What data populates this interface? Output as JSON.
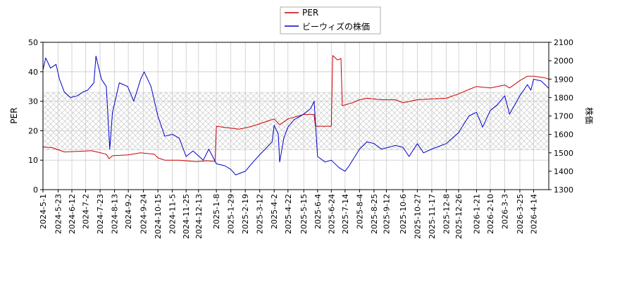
{
  "chart_data": {
    "type": "line",
    "title": "",
    "ylabel_left": "PER",
    "ylabel_right": "株価",
    "ylim_left": [
      0,
      50
    ],
    "ylim_right": [
      1300,
      2100
    ],
    "yticks_left": [
      0,
      10,
      20,
      30,
      40,
      50
    ],
    "yticks_right": [
      1300,
      1400,
      1500,
      1600,
      1700,
      1800,
      1900,
      2000,
      2100
    ],
    "x_start": "2024-05-01",
    "x_end": "2026-05-06",
    "xtick_labels": [
      "2024-5-1",
      "2024-5-23",
      "2024-6-12",
      "2024-7-2",
      "2024-7-23",
      "2024-8-13",
      "2024-9-2",
      "2024-9-24",
      "2024-10-15",
      "2024-11-5",
      "2024-11-25",
      "2024-12-13",
      "2025-1-8",
      "2025-1-29",
      "2025-2-19",
      "2025-3-12",
      "2025-4-2",
      "2025-4-22",
      "2025-5-15",
      "2025-6-4",
      "2025-6-24",
      "2025-7-14",
      "2025-8-4",
      "2025-8-25",
      "2025-9-12",
      "2025-10-6",
      "2025-10-27",
      "2025-11-17",
      "2025-12-8",
      "2025-12-26",
      "2026-1-21",
      "2026-2-10",
      "2026-3-3",
      "2026-3-25",
      "2026-4-14"
    ],
    "grid": true,
    "legend": "top-center",
    "band_left": [
      13.5,
      33
    ],
    "series": [
      {
        "name": "PER",
        "axis": "left",
        "color": "#cc0000",
        "points": [
          [
            "2024-05-01",
            14.5
          ],
          [
            "2024-05-15",
            14.2
          ],
          [
            "2024-06-01",
            12.8
          ],
          [
            "2024-06-20",
            13.0
          ],
          [
            "2024-07-10",
            13.2
          ],
          [
            "2024-07-20",
            12.7
          ],
          [
            "2024-08-01",
            12.0
          ],
          [
            "2024-08-05",
            10.5
          ],
          [
            "2024-08-10",
            11.5
          ],
          [
            "2024-09-01",
            11.8
          ],
          [
            "2024-09-20",
            12.5
          ],
          [
            "2024-10-10",
            12.0
          ],
          [
            "2024-10-15",
            10.8
          ],
          [
            "2024-10-25",
            10.0
          ],
          [
            "2024-11-15",
            10.0
          ],
          [
            "2024-12-10",
            9.5
          ],
          [
            "2024-12-25",
            9.8
          ],
          [
            "2025-01-06",
            9.6
          ],
          [
            "2025-01-08",
            21.5
          ],
          [
            "2025-01-25",
            21.0
          ],
          [
            "2025-02-10",
            20.5
          ],
          [
            "2025-03-01",
            21.5
          ],
          [
            "2025-03-20",
            23.0
          ],
          [
            "2025-04-02",
            24.0
          ],
          [
            "2025-04-10",
            22.0
          ],
          [
            "2025-04-22",
            24.0
          ],
          [
            "2025-05-15",
            25.5
          ],
          [
            "2025-05-30",
            25.5
          ],
          [
            "2025-06-01",
            21.5
          ],
          [
            "2025-06-24",
            21.5
          ],
          [
            "2025-06-26",
            45.5
          ],
          [
            "2025-07-03",
            44.0
          ],
          [
            "2025-07-08",
            44.5
          ],
          [
            "2025-07-10",
            28.5
          ],
          [
            "2025-07-25",
            29.5
          ],
          [
            "2025-08-04",
            30.5
          ],
          [
            "2025-08-15",
            31.0
          ],
          [
            "2025-09-05",
            30.5
          ],
          [
            "2025-09-25",
            30.5
          ],
          [
            "2025-10-06",
            29.5
          ],
          [
            "2025-10-27",
            30.5
          ],
          [
            "2025-11-17",
            30.8
          ],
          [
            "2025-12-08",
            31.0
          ],
          [
            "2025-12-26",
            32.5
          ],
          [
            "2026-01-10",
            34.0
          ],
          [
            "2026-01-21",
            35.0
          ],
          [
            "2026-02-10",
            34.5
          ],
          [
            "2026-03-03",
            35.5
          ],
          [
            "2026-03-10",
            34.5
          ],
          [
            "2026-03-25",
            37.0
          ],
          [
            "2026-04-05",
            38.5
          ],
          [
            "2026-04-14",
            38.5
          ],
          [
            "2026-04-30",
            38.0
          ],
          [
            "2026-05-06",
            37.5
          ]
        ]
      },
      {
        "name": "ビーウィズの株価",
        "axis": "right",
        "color": "#0000cc",
        "points": [
          [
            "2024-05-01",
            1950
          ],
          [
            "2024-05-05",
            2015
          ],
          [
            "2024-05-12",
            1960
          ],
          [
            "2024-05-20",
            1980
          ],
          [
            "2024-05-25",
            1900
          ],
          [
            "2024-06-01",
            1830
          ],
          [
            "2024-06-10",
            1800
          ],
          [
            "2024-06-20",
            1810
          ],
          [
            "2024-06-28",
            1830
          ],
          [
            "2024-07-05",
            1840
          ],
          [
            "2024-07-14",
            1880
          ],
          [
            "2024-07-17",
            2025
          ],
          [
            "2024-07-25",
            1900
          ],
          [
            "2024-08-01",
            1860
          ],
          [
            "2024-08-06",
            1520
          ],
          [
            "2024-08-10",
            1720
          ],
          [
            "2024-08-20",
            1880
          ],
          [
            "2024-09-01",
            1860
          ],
          [
            "2024-09-10",
            1780
          ],
          [
            "2024-09-20",
            1900
          ],
          [
            "2024-09-25",
            1940
          ],
          [
            "2024-10-05",
            1860
          ],
          [
            "2024-10-15",
            1700
          ],
          [
            "2024-10-25",
            1590
          ],
          [
            "2024-11-05",
            1600
          ],
          [
            "2024-11-15",
            1580
          ],
          [
            "2024-11-25",
            1480
          ],
          [
            "2024-12-05",
            1510
          ],
          [
            "2024-12-20",
            1460
          ],
          [
            "2024-12-28",
            1520
          ],
          [
            "2025-01-08",
            1440
          ],
          [
            "2025-01-20",
            1430
          ],
          [
            "2025-01-29",
            1410
          ],
          [
            "2025-02-05",
            1380
          ],
          [
            "2025-02-19",
            1400
          ],
          [
            "2025-02-28",
            1440
          ],
          [
            "2025-03-12",
            1490
          ],
          [
            "2025-03-20",
            1520
          ],
          [
            "2025-03-30",
            1560
          ],
          [
            "2025-04-02",
            1650
          ],
          [
            "2025-04-08",
            1600
          ],
          [
            "2025-04-10",
            1450
          ],
          [
            "2025-04-16",
            1580
          ],
          [
            "2025-04-22",
            1640
          ],
          [
            "2025-05-01",
            1680
          ],
          [
            "2025-05-15",
            1710
          ],
          [
            "2025-05-25",
            1740
          ],
          [
            "2025-05-30",
            1780
          ],
          [
            "2025-06-04",
            1480
          ],
          [
            "2025-06-15",
            1450
          ],
          [
            "2025-06-24",
            1460
          ],
          [
            "2025-07-05",
            1420
          ],
          [
            "2025-07-14",
            1400
          ],
          [
            "2025-07-20",
            1430
          ],
          [
            "2025-08-04",
            1520
          ],
          [
            "2025-08-15",
            1560
          ],
          [
            "2025-08-25",
            1550
          ],
          [
            "2025-09-05",
            1520
          ],
          [
            "2025-09-25",
            1540
          ],
          [
            "2025-10-06",
            1530
          ],
          [
            "2025-10-15",
            1480
          ],
          [
            "2025-10-27",
            1550
          ],
          [
            "2025-11-05",
            1500
          ],
          [
            "2025-11-17",
            1520
          ],
          [
            "2025-12-08",
            1550
          ],
          [
            "2025-12-26",
            1610
          ],
          [
            "2026-01-10",
            1700
          ],
          [
            "2026-01-21",
            1720
          ],
          [
            "2026-01-30",
            1640
          ],
          [
            "2026-02-10",
            1730
          ],
          [
            "2026-02-20",
            1760
          ],
          [
            "2026-03-03",
            1810
          ],
          [
            "2026-03-10",
            1710
          ],
          [
            "2026-03-25",
            1810
          ],
          [
            "2026-04-05",
            1870
          ],
          [
            "2026-04-10",
            1840
          ],
          [
            "2026-04-14",
            1900
          ],
          [
            "2026-04-25",
            1890
          ],
          [
            "2026-05-06",
            1850
          ]
        ]
      }
    ]
  }
}
